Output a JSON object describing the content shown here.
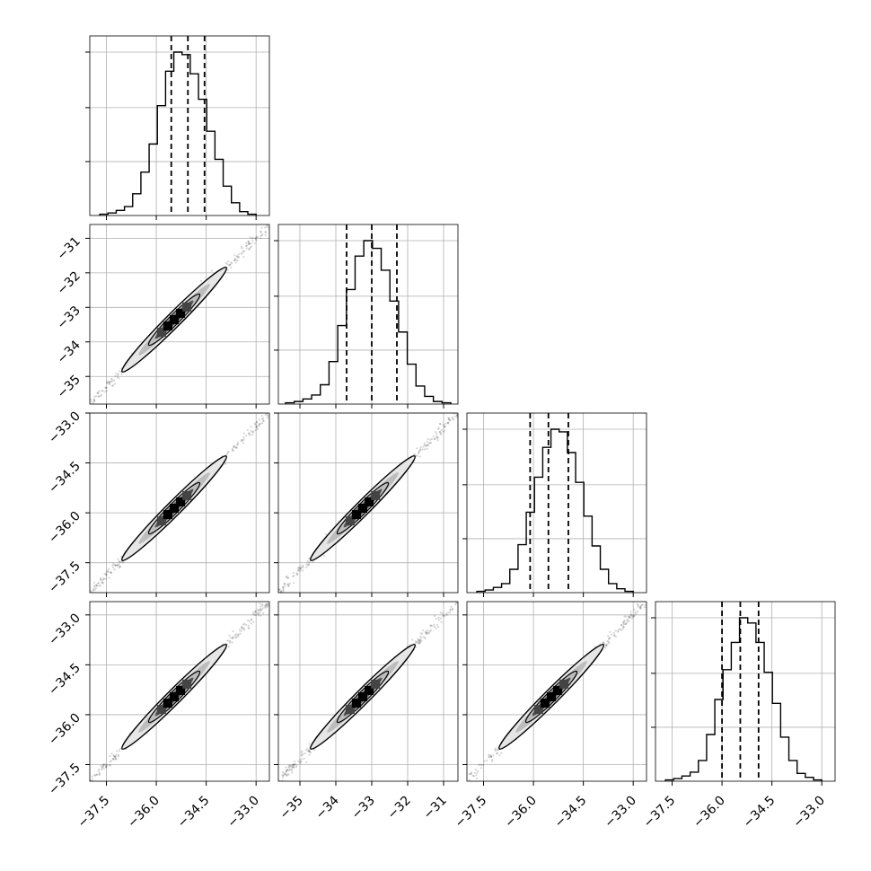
{
  "chart_data": {
    "type": "corner",
    "dims": 4,
    "xlims": [
      [
        -38.0,
        -32.6
      ],
      [
        -35.6,
        -30.6
      ],
      [
        -38.0,
        -32.6
      ],
      [
        -38.0,
        -32.6
      ]
    ],
    "ylims": [
      null,
      [
        -35.8,
        -30.6
      ],
      [
        -38.4,
        -33.0
      ],
      [
        -38.0,
        -32.6
      ]
    ],
    "x_ticks": [
      {
        "values": [
          -37.5,
          -36.0,
          -34.5,
          -33.0
        ],
        "labels": [
          "−37.5",
          "−36.0",
          "−34.5",
          "−33.0"
        ]
      },
      {
        "values": [
          -35,
          -34,
          -33,
          -32,
          -31
        ],
        "labels": [
          "−35",
          "−34",
          "−33",
          "−32",
          "−31"
        ]
      },
      {
        "values": [
          -37.5,
          -36.0,
          -34.5,
          -33.0
        ],
        "labels": [
          "−37.5",
          "−36.0",
          "−34.5",
          "−33.0"
        ]
      },
      {
        "values": [
          -37.5,
          -36.0,
          -34.5,
          -33.0
        ],
        "labels": [
          "−37.5",
          "−36.0",
          "−34.5",
          "−33.0"
        ]
      }
    ],
    "y_ticks": [
      null,
      {
        "values": [
          -35,
          -34,
          -33,
          -32,
          -31
        ],
        "labels": [
          "−35",
          "−34",
          "−33",
          "−32",
          "−31"
        ]
      },
      {
        "values": [
          -37.5,
          -36.0,
          -34.5,
          -33.0
        ],
        "labels": [
          "−37.5",
          "−36.0",
          "−34.5",
          "−33.0"
        ]
      },
      {
        "values": [
          -37.5,
          -36.0,
          -34.5,
          -33.0
        ],
        "labels": [
          "−37.5",
          "−36.0",
          "−34.5",
          "−33.0"
        ]
      }
    ],
    "quantiles": [
      [
        -35.55,
        -35.05,
        -34.55
      ],
      [
        -33.7,
        -33.0,
        -32.3
      ],
      [
        -36.1,
        -35.55,
        -34.95
      ],
      [
        -36.0,
        -35.45,
        -34.9
      ]
    ],
    "histograms": [
      {
        "edges": [
          -37.7,
          -33.0
        ],
        "counts": [
          1,
          2,
          4,
          7,
          17,
          34,
          56,
          86,
          113,
          128,
          126,
          111,
          91,
          66,
          44,
          23,
          10,
          3,
          1
        ]
      },
      {
        "edges": [
          -35.4,
          -30.8
        ],
        "counts": [
          1,
          2,
          4,
          7,
          15,
          33,
          61,
          89,
          115,
          127,
          121,
          104,
          80,
          56,
          31,
          14,
          6,
          2,
          1
        ]
      },
      {
        "edges": [
          -37.7,
          -33.0
        ],
        "counts": [
          1,
          2,
          4,
          7,
          18,
          37,
          62,
          89,
          112,
          126,
          124,
          108,
          85,
          59,
          36,
          18,
          7,
          3,
          1
        ]
      },
      {
        "edges": [
          -37.7,
          -33.0
        ],
        "counts": [
          1,
          2,
          4,
          7,
          16,
          36,
          63,
          86,
          107,
          126,
          122,
          107,
          84,
          60,
          34,
          16,
          6,
          3,
          1
        ]
      }
    ],
    "grid": true,
    "color": "#000000"
  }
}
